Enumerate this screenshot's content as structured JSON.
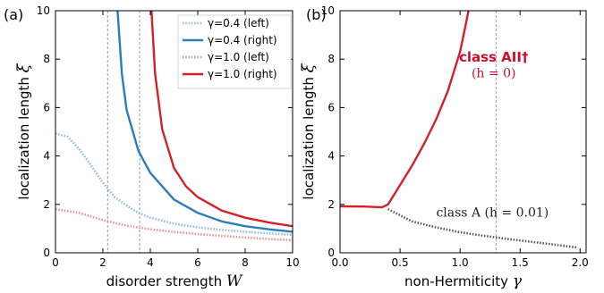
{
  "chart_data": [
    {
      "type": "line",
      "panel_label": "(a)",
      "xlabel_text": "disorder strength ",
      "xlabel_var": "W",
      "ylabel_text": "localization length ",
      "ylabel_var": "ξ",
      "xlim": [
        0,
        10
      ],
      "ylim": [
        0,
        10
      ],
      "xticks": [
        "0",
        "2",
        "4",
        "6",
        "8",
        "10"
      ],
      "yticks": [
        "0",
        "2",
        "4",
        "6",
        "8",
        "10"
      ],
      "vlines": [
        2.2,
        3.55
      ],
      "legend_position": "top-right",
      "series": [
        {
          "name": "γ=0.4 (left)",
          "color": "#8fbbdb",
          "dashed": true,
          "x": [
            0,
            0.5,
            1,
            1.5,
            2,
            2.5,
            3,
            3.5,
            4,
            5,
            6,
            7,
            8,
            9,
            10
          ],
          "y": [
            4.93,
            4.8,
            4.3,
            3.6,
            2.9,
            2.3,
            1.95,
            1.65,
            1.45,
            1.2,
            1.05,
            0.95,
            0.87,
            0.8,
            0.75
          ]
        },
        {
          "name": "γ=0.4 (right)",
          "color": "#2e7dbb",
          "dashed": false,
          "x": [
            2.62,
            2.8,
            3.0,
            3.5,
            4,
            5,
            6,
            7,
            8,
            9,
            10
          ],
          "y": [
            10,
            7.4,
            5.9,
            4.2,
            3.3,
            2.2,
            1.65,
            1.3,
            1.1,
            0.97,
            0.87
          ]
        },
        {
          "name": "γ=1.0 (left)",
          "color": "#ef8f97",
          "dashed": true,
          "x": [
            0,
            1,
            2,
            3,
            4,
            5,
            6,
            7,
            8,
            9,
            10
          ],
          "y": [
            1.8,
            1.65,
            1.35,
            1.12,
            0.97,
            0.86,
            0.77,
            0.7,
            0.63,
            0.57,
            0.52
          ]
        },
        {
          "name": "γ=1.0 (right)",
          "color": "#d5202a",
          "dashed": false,
          "x": [
            4.05,
            4.2,
            4.5,
            5,
            5.5,
            6,
            7,
            8,
            9,
            10
          ],
          "y": [
            10,
            7.4,
            5.1,
            3.5,
            2.75,
            2.3,
            1.75,
            1.45,
            1.25,
            1.1
          ]
        }
      ]
    },
    {
      "type": "line",
      "panel_label": "(b)",
      "xlabel_text": "non-Hermiticity ",
      "xlabel_var": "γ",
      "ylabel_text": "localization length ",
      "ylabel_var": "ξ",
      "xlim": [
        0,
        2.05
      ],
      "ylim": [
        0,
        10
      ],
      "xticks": [
        "0.0",
        "0.5",
        "1.0",
        "1.5",
        "2.0"
      ],
      "xtick_values": [
        0,
        0.5,
        1.0,
        1.5,
        2.0
      ],
      "yticks": [
        "0",
        "2",
        "4",
        "6",
        "8",
        "10"
      ],
      "vlines": [
        1.3
      ],
      "annotations": [
        {
          "text": "class AII†",
          "color": "#c8102e",
          "bold": true,
          "x": 1.28,
          "y": 7.9
        },
        {
          "text": "(h = 0)",
          "color": "#c8102e",
          "bold": false,
          "x": 1.28,
          "y": 7.25
        },
        {
          "text": "class A (h = 0.01)",
          "color": "#222222",
          "bold": false,
          "x": 1.27,
          "y": 1.5
        }
      ],
      "series": [
        {
          "color": "#d5202a",
          "dashed": false,
          "x": [
            0,
            0.2,
            0.35,
            0.4,
            0.45,
            0.5,
            0.6,
            0.7,
            0.8,
            0.9,
            1.0,
            1.05,
            1.07
          ],
          "y": [
            1.92,
            1.91,
            1.88,
            2.0,
            2.4,
            2.8,
            3.6,
            4.5,
            5.5,
            6.7,
            8.3,
            9.5,
            10
          ]
        },
        {
          "color": "#555555",
          "dashed": true,
          "x": [
            0.4,
            0.6,
            0.8,
            1.0,
            1.2,
            1.4,
            1.6,
            1.8,
            1.97
          ],
          "y": [
            1.8,
            1.3,
            1.05,
            0.85,
            0.7,
            0.57,
            0.45,
            0.33,
            0.22
          ]
        }
      ]
    }
  ]
}
